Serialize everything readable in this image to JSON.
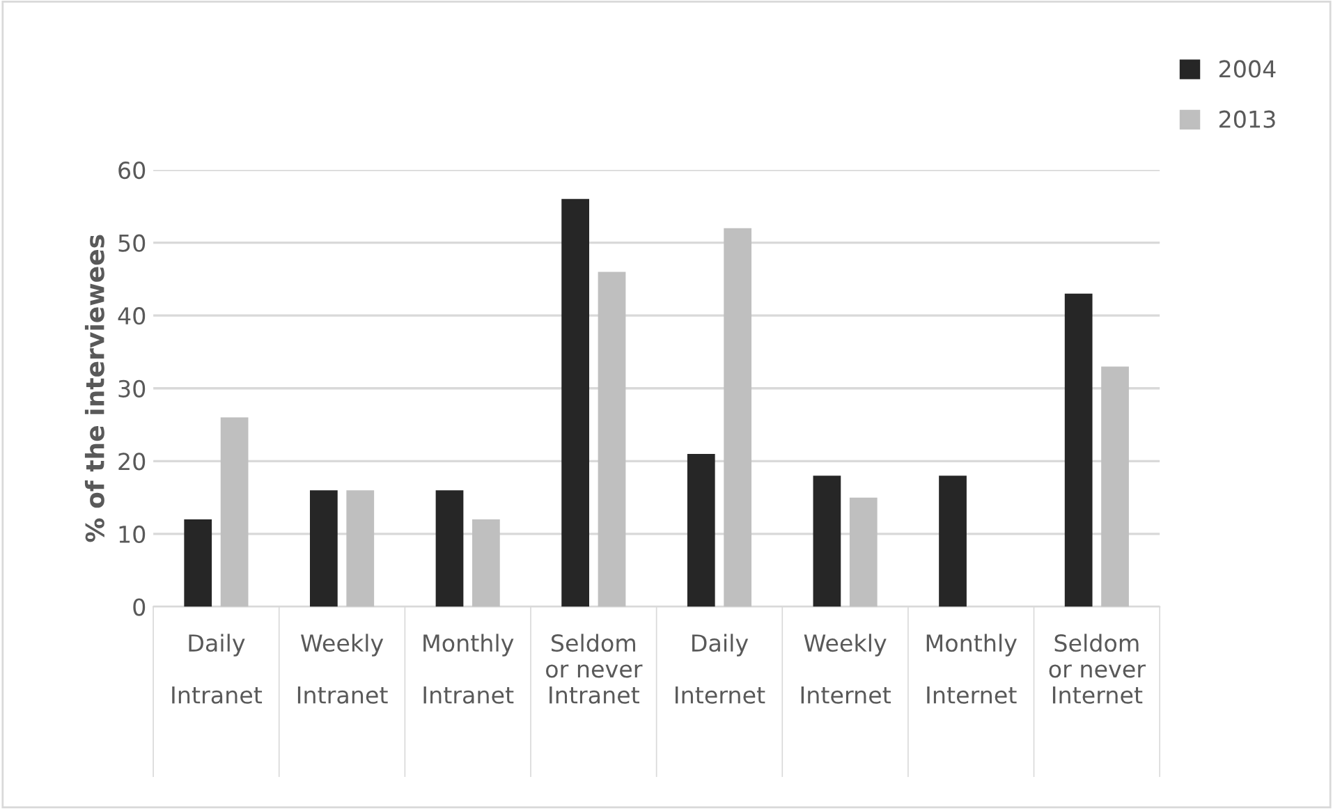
{
  "chart_data": {
    "type": "bar",
    "ylabel": "% of the interviewees",
    "categories": [
      "Daily\n\nIntranet",
      "Weekly\n\nIntranet",
      "Monthly\n\nIntranet",
      "Seldom\nor never\nIntranet",
      "Daily\n\nInternet",
      "Weekly\n\nInternet",
      "Monthly\n\nInternet",
      "Seldom\nor never\nInternet"
    ],
    "series": [
      {
        "name": "2004",
        "color": "#262626",
        "values": [
          12,
          16,
          16,
          56,
          21,
          18,
          18,
          43
        ]
      },
      {
        "name": "2013",
        "color": "#bfbfbf",
        "values": [
          26,
          16,
          12,
          46,
          52,
          15,
          0,
          33
        ]
      }
    ],
    "ylim": [
      0,
      60
    ],
    "yticks": [
      0,
      10,
      20,
      30,
      40,
      50,
      60
    ],
    "grid": "y",
    "legend": "top right"
  }
}
